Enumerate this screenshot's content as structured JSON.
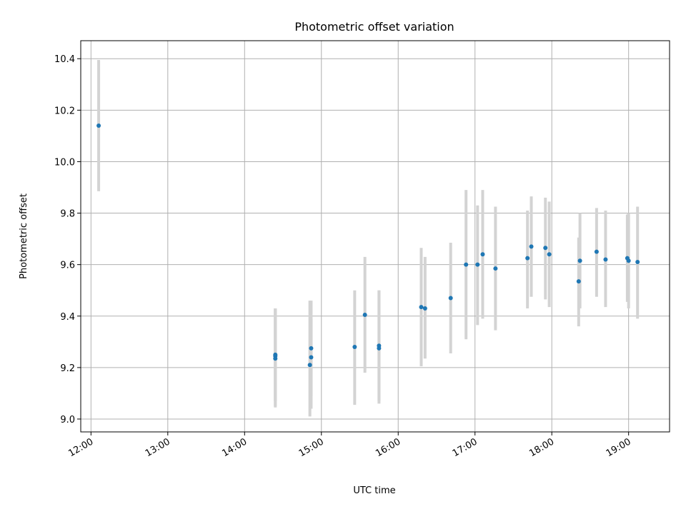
{
  "chart_data": {
    "type": "scatter",
    "title": "Photometric offset variation",
    "xlabel": "UTC time",
    "ylabel": "Photometric offset",
    "x_tick_labels": [
      "12:00",
      "13:00",
      "14:00",
      "15:00",
      "16:00",
      "17:00",
      "18:00",
      "19:00"
    ],
    "x_tick_hours": [
      12,
      13,
      14,
      15,
      16,
      17,
      18,
      19
    ],
    "xlim": [
      "11:52",
      "19:32"
    ],
    "y_ticks": [
      9.0,
      9.2,
      9.4,
      9.6,
      9.8,
      10.0,
      10.2,
      10.4
    ],
    "y_tick_labels": [
      "9.0",
      "9.2",
      "9.4",
      "9.6",
      "9.8",
      "10.0",
      "10.2",
      "10.4"
    ],
    "ylim": [
      8.95,
      10.47
    ],
    "grid": true,
    "colors": {
      "points": "#1f77b4",
      "error_bars": "#d3d3d3",
      "grid": "#b0b0b0"
    },
    "series": [
      {
        "points": [
          {
            "x": "12:06",
            "y": 10.14,
            "lo": 9.885,
            "hi": 10.395
          },
          {
            "x": "14:24",
            "y": 9.25,
            "lo": 9.05,
            "hi": 9.43
          },
          {
            "x": "14:24",
            "y": 9.245,
            "lo": 9.07,
            "hi": 9.43
          },
          {
            "x": "14:24",
            "y": 9.235,
            "lo": 9.045,
            "hi": 9.43
          },
          {
            "x": "14:51",
            "y": 9.21,
            "lo": 9.01,
            "hi": 9.46
          },
          {
            "x": "14:52",
            "y": 9.275,
            "lo": 9.04,
            "hi": 9.46
          },
          {
            "x": "14:52",
            "y": 9.24,
            "lo": 9.09,
            "hi": 9.39
          },
          {
            "x": "15:26",
            "y": 9.28,
            "lo": 9.055,
            "hi": 9.5
          },
          {
            "x": "15:34",
            "y": 9.405,
            "lo": 9.18,
            "hi": 9.63
          },
          {
            "x": "15:45",
            "y": 9.285,
            "lo": 9.07,
            "hi": 9.5
          },
          {
            "x": "15:45",
            "y": 9.275,
            "lo": 9.06,
            "hi": 9.5
          },
          {
            "x": "16:18",
            "y": 9.435,
            "lo": 9.205,
            "hi": 9.665
          },
          {
            "x": "16:21",
            "y": 9.43,
            "lo": 9.235,
            "hi": 9.63
          },
          {
            "x": "16:41",
            "y": 9.47,
            "lo": 9.255,
            "hi": 9.685
          },
          {
            "x": "16:53",
            "y": 9.6,
            "lo": 9.31,
            "hi": 9.89
          },
          {
            "x": "17:02",
            "y": 9.6,
            "lo": 9.365,
            "hi": 9.83
          },
          {
            "x": "17:06",
            "y": 9.64,
            "lo": 9.39,
            "hi": 9.89
          },
          {
            "x": "17:16",
            "y": 9.585,
            "lo": 9.345,
            "hi": 9.825
          },
          {
            "x": "17:41",
            "y": 9.625,
            "lo": 9.43,
            "hi": 9.81
          },
          {
            "x": "17:44",
            "y": 9.67,
            "lo": 9.475,
            "hi": 9.865
          },
          {
            "x": "17:55",
            "y": 9.665,
            "lo": 9.465,
            "hi": 9.86
          },
          {
            "x": "17:58",
            "y": 9.64,
            "lo": 9.435,
            "hi": 9.845
          },
          {
            "x": "18:21",
            "y": 9.535,
            "lo": 9.36,
            "hi": 9.705
          },
          {
            "x": "18:22",
            "y": 9.615,
            "lo": 9.43,
            "hi": 9.8
          },
          {
            "x": "18:35",
            "y": 9.65,
            "lo": 9.475,
            "hi": 9.82
          },
          {
            "x": "18:42",
            "y": 9.62,
            "lo": 9.435,
            "hi": 9.81
          },
          {
            "x": "18:59",
            "y": 9.625,
            "lo": 9.455,
            "hi": 9.795
          },
          {
            "x": "19:00",
            "y": 9.615,
            "lo": 9.43,
            "hi": 9.8
          },
          {
            "x": "19:07",
            "y": 9.61,
            "lo": 9.39,
            "hi": 9.825
          }
        ]
      }
    ]
  }
}
